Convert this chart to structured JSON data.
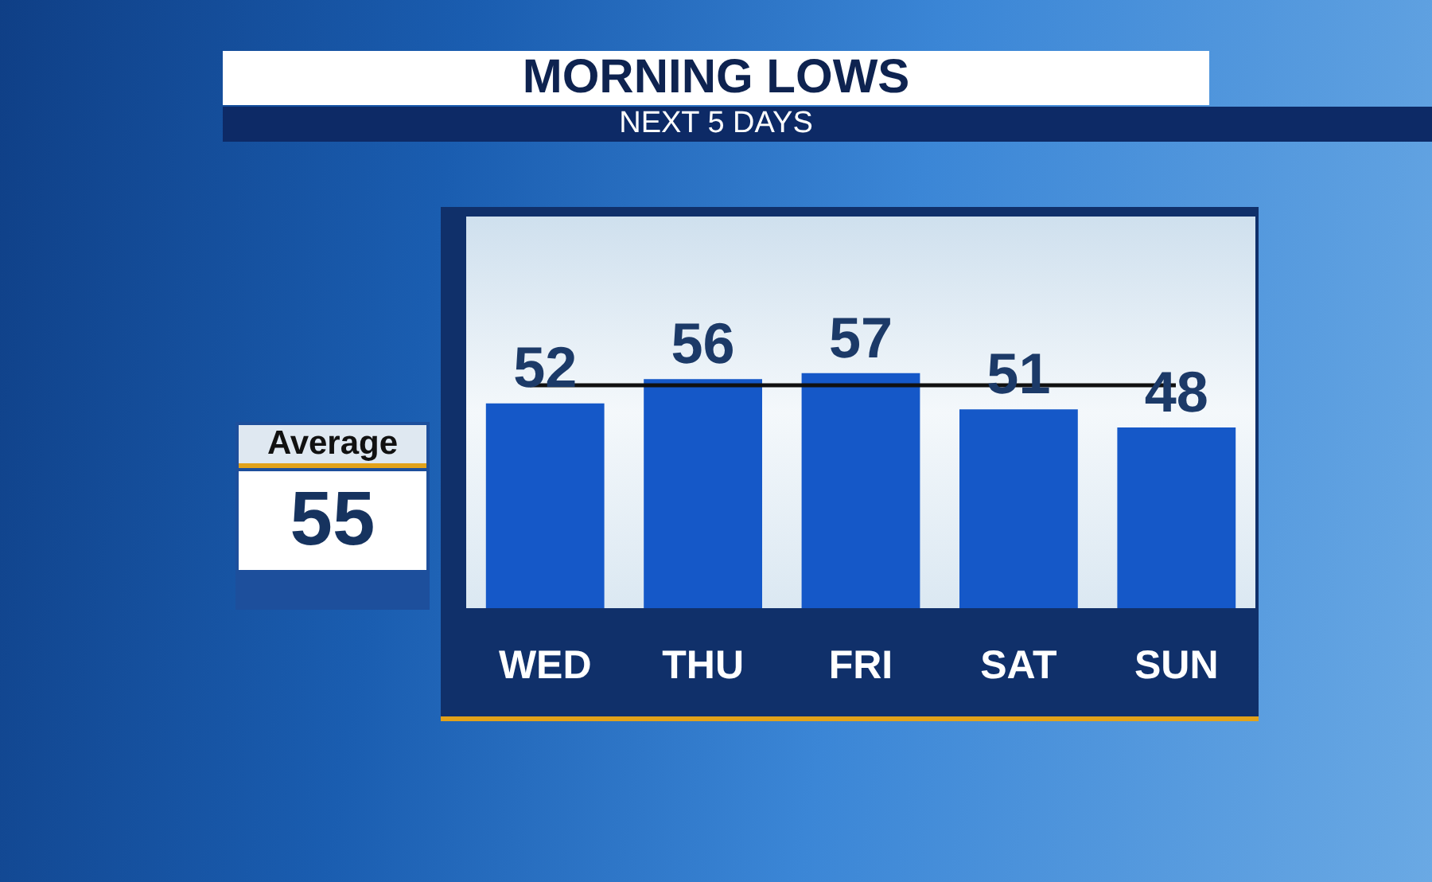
{
  "chart_data": {
    "type": "bar",
    "title": "MORNING LOWS",
    "subtitle": "NEXT 5 DAYS",
    "categories": [
      "WED",
      "THU",
      "FRI",
      "SAT",
      "SUN"
    ],
    "values": [
      52,
      56,
      57,
      51,
      48
    ],
    "color": "#1558c8",
    "ylim": [
      18,
      83
    ],
    "tick_labels": "x",
    "grid": false,
    "data_labels": true,
    "annotations": [
      "55"
    ],
    "ref_lines": [
      {
        "axis": "y",
        "value": 55,
        "label": "Average",
        "color": "#111111"
      }
    ]
  }
}
